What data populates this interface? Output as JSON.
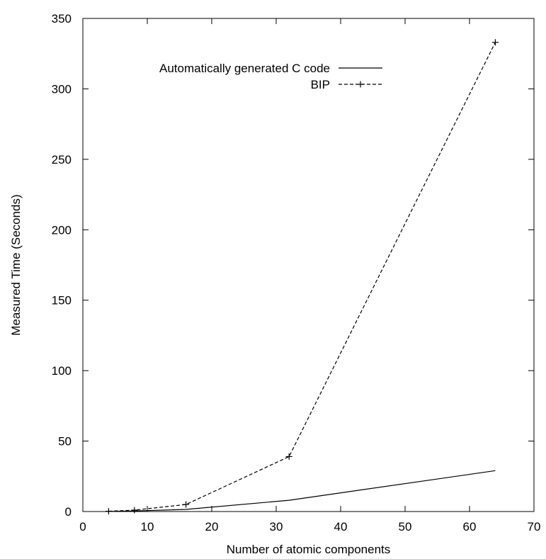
{
  "chart_data": {
    "type": "line",
    "xlabel": "Number of atomic components",
    "ylabel": "Measured Time (Seconds)",
    "xlim": [
      0,
      70
    ],
    "ylim": [
      0,
      350
    ],
    "x_ticks": [
      0,
      10,
      20,
      30,
      40,
      50,
      60,
      70
    ],
    "y_ticks": [
      0,
      50,
      100,
      150,
      200,
      250,
      300,
      350
    ],
    "legend_position": "top-left inside",
    "grid": false,
    "series": [
      {
        "name": "Automatically generated C code",
        "style": "solid",
        "marker": "none",
        "x": [
          4,
          8,
          16,
          32,
          64
        ],
        "y": [
          0.1,
          0.4,
          1.5,
          8,
          29
        ]
      },
      {
        "name": "BIP",
        "style": "dashed",
        "marker": "plus",
        "x": [
          4,
          8,
          16,
          32,
          64
        ],
        "y": [
          0.2,
          1,
          5,
          39,
          333
        ]
      }
    ]
  }
}
